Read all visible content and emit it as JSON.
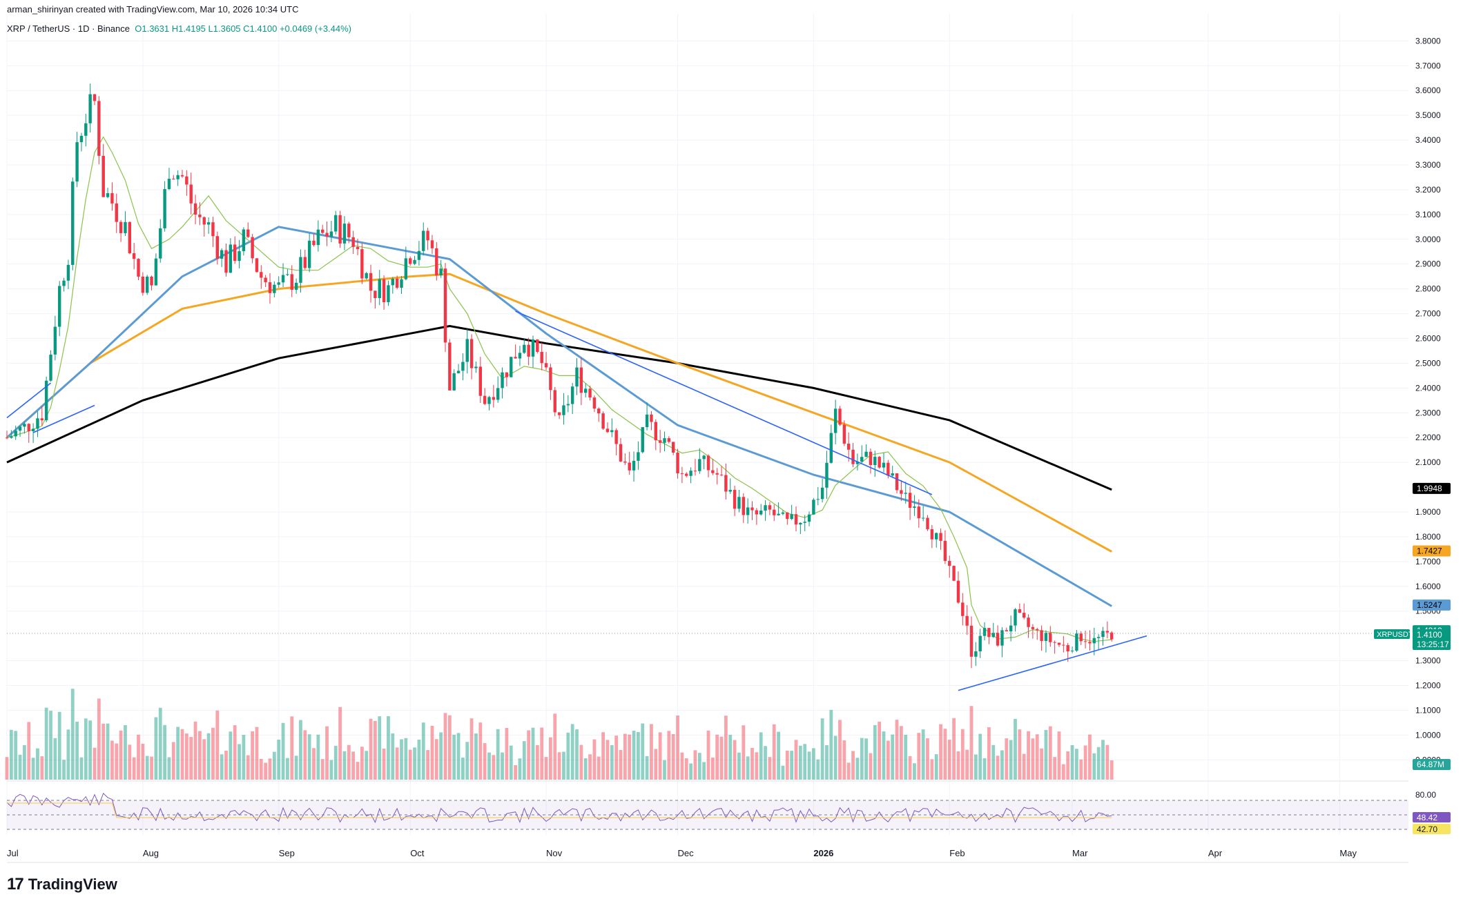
{
  "attribution": "arman_shirinyan created with TradingView.com, Mar 10, 2026 10:34 UTC",
  "symbol": {
    "title": "XRP / TetherUS · 1D · Binance",
    "open": "O1.3631",
    "high": "H1.4195",
    "low": "L1.3605",
    "close": "C1.4100",
    "change": "+0.0469 (+3.44%)"
  },
  "brand": "TradingView",
  "colors": {
    "up": "#089981",
    "down": "#f23645",
    "ma_black": "#000000",
    "ma_orange": "#f5a623",
    "ma_blue": "#5b9bd5",
    "ma_green": "#8bc34a",
    "trendline": "#2962ff",
    "rsi": "#7e57c2"
  },
  "chart_data": {
    "type": "candlestick",
    "title": "XRP / TetherUS · 1D · Binance",
    "x_tick_labels": [
      "Jul",
      "Aug",
      "Sep",
      "Oct",
      "Nov",
      "Dec",
      "2026",
      "Feb",
      "Mar",
      "Apr",
      "May"
    ],
    "y_tick_labels": [
      "3.8000",
      "3.7000",
      "3.6000",
      "3.5000",
      "3.4000",
      "3.3000",
      "3.2000",
      "3.1000",
      "3.0000",
      "2.9000",
      "2.8000",
      "2.7000",
      "2.6000",
      "2.5000",
      "2.4000",
      "2.3000",
      "2.2000",
      "2.1000",
      "1.9000",
      "1.8000",
      "1.7000",
      "1.6000",
      "1.5000",
      "1.3000",
      "1.2000",
      "1.1000",
      "1.0000",
      "0.9000"
    ],
    "ylim": [
      0.82,
      3.84
    ],
    "price_series": [
      {
        "date": "Jul 1",
        "close": 2.2
      },
      {
        "date": "Jul 5",
        "close": 2.24
      },
      {
        "date": "Jul 9",
        "close": 2.3
      },
      {
        "date": "Jul 11",
        "close": 2.55
      },
      {
        "date": "Jul 13",
        "close": 2.8
      },
      {
        "date": "Jul 15",
        "close": 2.95
      },
      {
        "date": "Jul 17",
        "close": 3.4
      },
      {
        "date": "Jul 19",
        "close": 3.5
      },
      {
        "date": "Jul 21",
        "close": 3.55
      },
      {
        "date": "Jul 23",
        "close": 3.2
      },
      {
        "date": "Jul 25",
        "close": 3.15
      },
      {
        "date": "Jul 28",
        "close": 3.05
      },
      {
        "date": "Jul 31",
        "close": 2.85
      },
      {
        "date": "Aug 3",
        "close": 2.8
      },
      {
        "date": "Aug 7",
        "close": 3.3
      },
      {
        "date": "Aug 10",
        "close": 3.25
      },
      {
        "date": "Aug 13",
        "close": 3.1
      },
      {
        "date": "Aug 16",
        "close": 3.05
      },
      {
        "date": "Aug 20",
        "close": 2.9
      },
      {
        "date": "Aug 24",
        "close": 3.0
      },
      {
        "date": "Aug 28",
        "close": 2.85
      },
      {
        "date": "Sep 1",
        "close": 2.8
      },
      {
        "date": "Sep 5",
        "close": 2.85
      },
      {
        "date": "Sep 10",
        "close": 3.0
      },
      {
        "date": "Sep 14",
        "close": 3.05
      },
      {
        "date": "Sep 18",
        "close": 3.0
      },
      {
        "date": "Sep 22",
        "close": 2.8
      },
      {
        "date": "Sep 26",
        "close": 2.8
      },
      {
        "date": "Oct 1",
        "close": 2.95
      },
      {
        "date": "Oct 5",
        "close": 3.0
      },
      {
        "date": "Oct 8",
        "close": 2.85
      },
      {
        "date": "Oct 10",
        "close": 2.4
      },
      {
        "date": "Oct 14",
        "close": 2.55
      },
      {
        "date": "Oct 18",
        "close": 2.35
      },
      {
        "date": "Oct 22",
        "close": 2.45
      },
      {
        "date": "Oct 27",
        "close": 2.6
      },
      {
        "date": "Oct 31",
        "close": 2.5
      },
      {
        "date": "Nov 4",
        "close": 2.25
      },
      {
        "date": "Nov 8",
        "close": 2.45
      },
      {
        "date": "Nov 12",
        "close": 2.35
      },
      {
        "date": "Nov 16",
        "close": 2.2
      },
      {
        "date": "Nov 20",
        "close": 2.05
      },
      {
        "date": "Nov 24",
        "close": 2.25
      },
      {
        "date": "Nov 28",
        "close": 2.2
      },
      {
        "date": "Dec 2",
        "close": 2.05
      },
      {
        "date": "Dec 6",
        "close": 2.1
      },
      {
        "date": "Dec 10",
        "close": 2.05
      },
      {
        "date": "Dec 14",
        "close": 1.95
      },
      {
        "date": "Dec 18",
        "close": 1.88
      },
      {
        "date": "Dec 22",
        "close": 1.9
      },
      {
        "date": "Dec 26",
        "close": 1.85
      },
      {
        "date": "Dec 30",
        "close": 1.88
      },
      {
        "date": "Jan 3",
        "close": 2.0
      },
      {
        "date": "Jan 6",
        "close": 2.3
      },
      {
        "date": "Jan 10",
        "close": 2.1
      },
      {
        "date": "Jan 14",
        "close": 2.12
      },
      {
        "date": "Jan 18",
        "close": 2.05
      },
      {
        "date": "Jan 22",
        "close": 1.95
      },
      {
        "date": "Jan 26",
        "close": 1.9
      },
      {
        "date": "Jan 30",
        "close": 1.75
      },
      {
        "date": "Feb 2",
        "close": 1.6
      },
      {
        "date": "Feb 5",
        "close": 1.45
      },
      {
        "date": "Feb 6",
        "close": 1.3
      },
      {
        "date": "Feb 8",
        "close": 1.42
      },
      {
        "date": "Feb 12",
        "close": 1.38
      },
      {
        "date": "Feb 16",
        "close": 1.48
      },
      {
        "date": "Feb 20",
        "close": 1.42
      },
      {
        "date": "Feb 24",
        "close": 1.38
      },
      {
        "date": "Feb 28",
        "close": 1.35
      },
      {
        "date": "Mar 3",
        "close": 1.4
      },
      {
        "date": "Mar 6",
        "close": 1.38
      },
      {
        "date": "Mar 10",
        "close": 1.41
      }
    ],
    "moving_averages": [
      {
        "color": "black",
        "points": [
          [
            "Jul 1",
            2.1
          ],
          [
            "Aug 1",
            2.35
          ],
          [
            "Sep 1",
            2.52
          ],
          [
            "Oct 1",
            2.62
          ],
          [
            "Oct 10",
            2.65
          ],
          [
            "Nov 1",
            2.58
          ],
          [
            "Dec 1",
            2.5
          ],
          [
            "Jan 1",
            2.4
          ],
          [
            "Feb 1",
            2.27
          ],
          [
            "Mar 10",
            1.99
          ]
        ]
      },
      {
        "color": "orange",
        "points": [
          [
            "Jul 1",
            2.2
          ],
          [
            "Jul 20",
            2.5
          ],
          [
            "Aug 10",
            2.72
          ],
          [
            "Sep 1",
            2.8
          ],
          [
            "Oct 1",
            2.85
          ],
          [
            "Oct 10",
            2.86
          ],
          [
            "Nov 1",
            2.7
          ],
          [
            "Dec 1",
            2.5
          ],
          [
            "Jan 1",
            2.3
          ],
          [
            "Feb 1",
            2.1
          ],
          [
            "Mar 10",
            1.74
          ]
        ]
      },
      {
        "color": "blue",
        "points": [
          [
            "Jul 1",
            2.2
          ],
          [
            "Jul 20",
            2.5
          ],
          [
            "Aug 10",
            2.85
          ],
          [
            "Sep 1",
            3.05
          ],
          [
            "Oct 1",
            2.95
          ],
          [
            "Oct 10",
            2.92
          ],
          [
            "Nov 1",
            2.62
          ],
          [
            "Dec 1",
            2.25
          ],
          [
            "Jan 1",
            2.05
          ],
          [
            "Feb 1",
            1.9
          ],
          [
            "Mar 10",
            1.52
          ]
        ]
      }
    ],
    "price_labels": [
      "1.9948",
      "1.7427",
      "1.5247",
      "1.4210"
    ],
    "current_price_label": {
      "symbol": "XRPUSDT",
      "price": "1.4100",
      "countdown": "13:25:17"
    },
    "volume_label": "64.87M",
    "rsi": {
      "levels": [
        "80.00"
      ],
      "value_labels": [
        "48.42",
        "42.70"
      ]
    }
  }
}
